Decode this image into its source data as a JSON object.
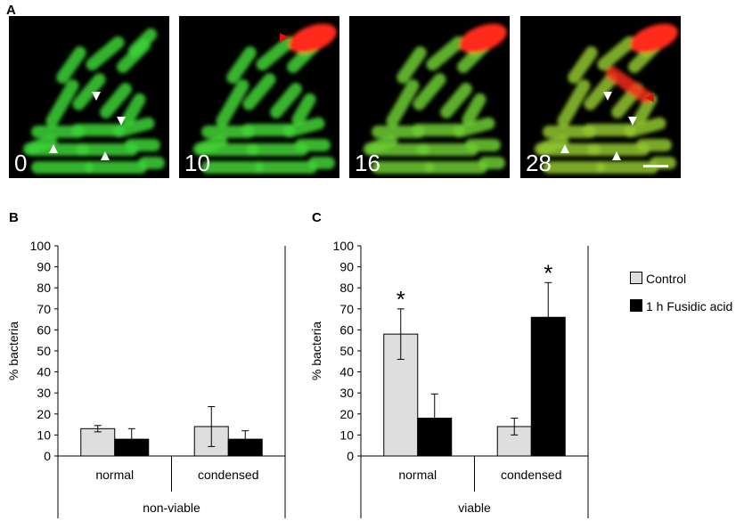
{
  "figure": {
    "panel_a_label": "A",
    "panel_b_label": "B",
    "panel_c_label": "C",
    "frames": [
      {
        "label": "0",
        "red_cluster": false,
        "red_rod": false,
        "yellow_tint": 0,
        "white_arrows": true,
        "red_arrows": [],
        "scalebar": false
      },
      {
        "label": "10",
        "red_cluster": true,
        "red_rod": false,
        "yellow_tint": 0.05,
        "white_arrows": false,
        "red_arrows": [
          "cluster"
        ],
        "scalebar": false
      },
      {
        "label": "16",
        "red_cluster": true,
        "red_rod": false,
        "yellow_tint": 0.35,
        "white_arrows": false,
        "red_arrows": [],
        "scalebar": false
      },
      {
        "label": "28",
        "red_cluster": true,
        "red_rod": true,
        "yellow_tint": 0.6,
        "white_arrows": true,
        "red_arrows": [
          "rod"
        ],
        "scalebar": true
      }
    ],
    "colors": {
      "control": "#dedede",
      "fusidic": "#000000",
      "bacteria_green": "#3fd43a",
      "bacteria_red": "#ff2a1a",
      "arrow_white": "#ffffff",
      "arrow_red": "#e01010"
    }
  },
  "legend": {
    "items": [
      {
        "label": "Control",
        "color": "#dedede"
      },
      {
        "label": "1 h Fusidic acid",
        "color": "#000000"
      }
    ]
  },
  "chart_data": [
    {
      "type": "bar",
      "panel": "B",
      "categories": [
        "normal",
        "condensed"
      ],
      "group_label": "non-viable",
      "ylabel": "% bacteria",
      "ylim": [
        0,
        100
      ],
      "yticks": [
        0,
        10,
        20,
        30,
        40,
        50,
        60,
        70,
        80,
        90,
        100
      ],
      "series": [
        {
          "name": "Control",
          "values": [
            13,
            14
          ],
          "errors": [
            1.5,
            9.5
          ]
        },
        {
          "name": "1 h Fusidic acid",
          "values": [
            8,
            8
          ],
          "errors": [
            5,
            4
          ]
        }
      ],
      "significance": []
    },
    {
      "type": "bar",
      "panel": "C",
      "categories": [
        "normal",
        "condensed"
      ],
      "group_label": "viable",
      "ylabel": "% bacteria",
      "ylim": [
        0,
        100
      ],
      "yticks": [
        0,
        10,
        20,
        30,
        40,
        50,
        60,
        70,
        80,
        90,
        100
      ],
      "series": [
        {
          "name": "Control",
          "values": [
            58,
            14
          ],
          "errors": [
            12,
            4
          ]
        },
        {
          "name": "1 h Fusidic acid",
          "values": [
            18,
            66
          ],
          "errors": [
            11.5,
            16.5
          ]
        }
      ],
      "significance": [
        {
          "category": 0,
          "series": 0,
          "label": "*"
        },
        {
          "category": 1,
          "series": 1,
          "label": "*"
        }
      ]
    }
  ]
}
